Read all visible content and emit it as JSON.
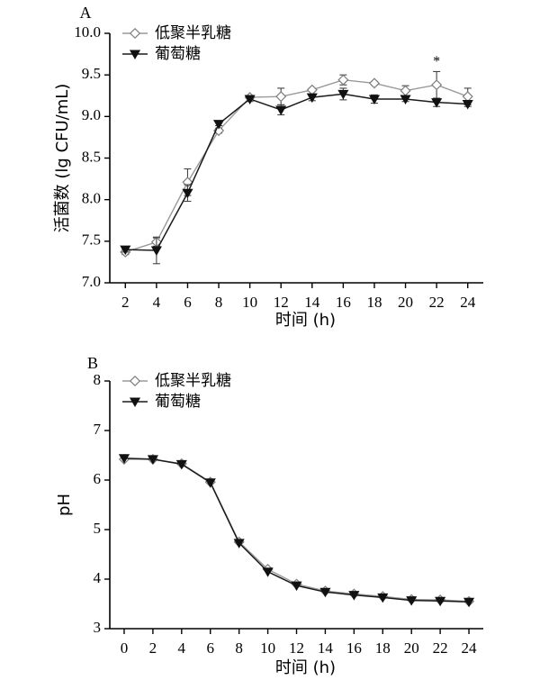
{
  "chart_data": [
    {
      "type": "line",
      "panel_label": "A",
      "xlabel": "时间 (h)",
      "ylabel": "活菌数 (lg CFU/mL)",
      "x": [
        2,
        4,
        6,
        8,
        10,
        12,
        14,
        16,
        18,
        20,
        22,
        24
      ],
      "xticks": [
        2,
        4,
        6,
        8,
        10,
        12,
        14,
        16,
        18,
        20,
        22,
        24
      ],
      "xlim": [
        1,
        25
      ],
      "ylim": [
        7.0,
        10.0
      ],
      "yticks": [
        "7.0",
        "7.5",
        "8.0",
        "8.5",
        "9.0",
        "9.5",
        "10.0"
      ],
      "legend_position": "top-left",
      "series": [
        {
          "name": "低聚半乳糖",
          "marker": "open-diamond",
          "values": [
            7.37,
            7.49,
            8.21,
            8.83,
            9.23,
            9.24,
            9.32,
            9.44,
            9.4,
            9.31,
            9.38,
            9.24
          ],
          "errors": [
            0.03,
            0.05,
            0.16,
            0.03,
            0.02,
            0.1,
            0.02,
            0.06,
            0.02,
            0.06,
            0.16,
            0.1
          ]
        },
        {
          "name": "葡萄糖",
          "marker": "filled-triangle-down",
          "values": [
            7.4,
            7.39,
            8.08,
            8.91,
            9.21,
            9.08,
            9.23,
            9.27,
            9.21,
            9.21,
            9.17,
            9.15
          ],
          "errors": [
            0.03,
            0.16,
            0.1,
            0.02,
            0.03,
            0.06,
            0.04,
            0.07,
            0.05,
            0.03,
            0.05,
            0.03
          ]
        }
      ],
      "annotations": [
        {
          "text": "*",
          "x": 22
        }
      ]
    },
    {
      "type": "line",
      "panel_label": "B",
      "xlabel": "时间 (h)",
      "ylabel": "pH",
      "x": [
        0,
        2,
        4,
        6,
        8,
        10,
        12,
        14,
        16,
        18,
        20,
        22,
        24
      ],
      "xticks": [
        0,
        2,
        4,
        6,
        8,
        10,
        12,
        14,
        16,
        18,
        20,
        22,
        24
      ],
      "xlim": [
        -1,
        25
      ],
      "ylim": [
        3,
        8
      ],
      "yticks": [
        "3",
        "4",
        "5",
        "6",
        "7",
        "8"
      ],
      "legend_position": "top-left",
      "series": [
        {
          "name": "低聚半乳糖",
          "marker": "open-diamond",
          "values": [
            6.42,
            6.42,
            6.33,
            5.96,
            4.75,
            4.2,
            3.9,
            3.76,
            3.7,
            3.65,
            3.59,
            3.58,
            3.55
          ],
          "errors": []
        },
        {
          "name": "葡萄糖",
          "marker": "filled-triangle-down",
          "values": [
            6.44,
            6.42,
            6.32,
            5.95,
            4.73,
            4.15,
            3.87,
            3.74,
            3.68,
            3.63,
            3.57,
            3.56,
            3.54
          ],
          "errors": []
        }
      ],
      "annotations": []
    }
  ]
}
